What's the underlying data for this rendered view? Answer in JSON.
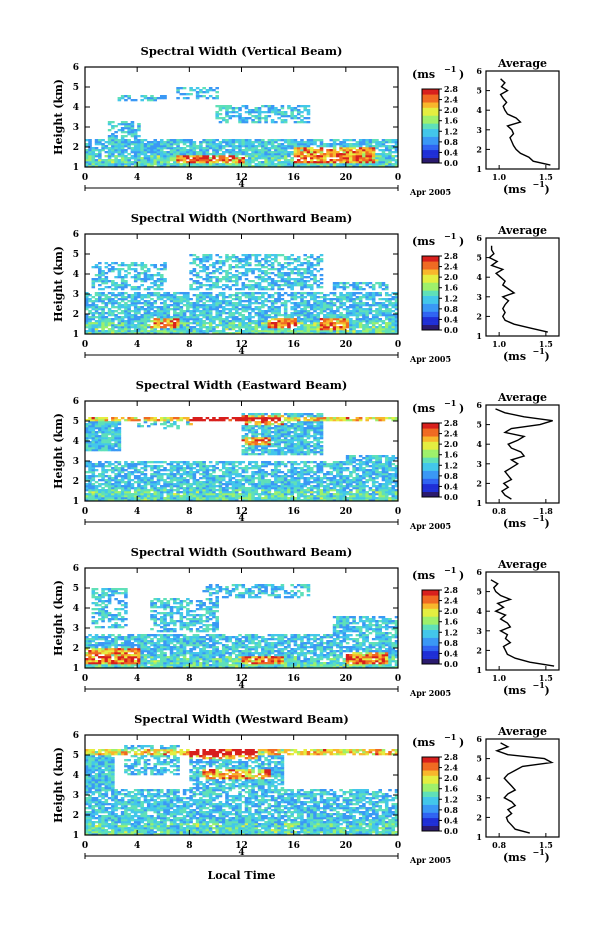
{
  "figure": {
    "x_label": "Local Time",
    "date_label": "Apr 2005",
    "date_tick": "4",
    "height_label": "Height (km)",
    "unit_label": "(ms",
    "unit_exp": "−1",
    "average_title": "Average",
    "colorscale": [
      "#2b1a6e",
      "#1f2fd6",
      "#2f63f2",
      "#3a98f5",
      "#43c7ea",
      "#5fe0b8",
      "#9ef06b",
      "#e4ee40",
      "#f8b72c",
      "#f06a22",
      "#d81f1c"
    ]
  },
  "chart_data": [
    {
      "type": "heatmap",
      "title": "Spectral Width (Vertical Beam)",
      "x_ticks": [
        "0",
        "4",
        "8",
        "12",
        "16",
        "20",
        "0"
      ],
      "y_ticks": [
        "1",
        "2",
        "3",
        "4",
        "5",
        "6"
      ],
      "xlim": [
        0,
        24
      ],
      "ylim": [
        1,
        6
      ],
      "colorbar": {
        "ticks": [
          "0.0",
          "0.4",
          "0.8",
          "1.2",
          "1.6",
          "2.0",
          "2.4",
          "2.8"
        ],
        "range": [
          0,
          2.8
        ]
      },
      "profile": {
        "title": "Average",
        "x_ticks": [
          "1.0",
          "1.5"
        ],
        "xlim": [
          0.8,
          1.65
        ],
        "ylim": [
          1,
          6
        ],
        "y_ticks": [
          "1",
          "2",
          "3",
          "4",
          "5",
          "6"
        ],
        "heights": [
          1.2,
          1.4,
          1.6,
          1.8,
          2.0,
          2.2,
          2.4,
          2.6,
          2.8,
          3.0,
          3.2,
          3.4,
          3.6,
          3.8,
          4.0,
          4.2,
          4.4,
          4.6,
          4.8,
          5.0,
          5.2,
          5.4,
          5.6
        ],
        "values": [
          1.55,
          1.35,
          1.3,
          1.2,
          1.15,
          1.12,
          1.1,
          1.08,
          1.12,
          1.1,
          1.05,
          1.2,
          1.15,
          1.05,
          1.02,
          1.0,
          1.04,
          1.0,
          0.97,
          1.05,
          0.98,
          1.02,
          0.97
        ]
      }
    },
    {
      "type": "heatmap",
      "title": "Spectral Width (Northward Beam)",
      "x_ticks": [
        "0",
        "4",
        "8",
        "12",
        "16",
        "20",
        "0"
      ],
      "y_ticks": [
        "1",
        "2",
        "3",
        "4",
        "5",
        "6"
      ],
      "xlim": [
        0,
        24
      ],
      "ylim": [
        1,
        6
      ],
      "colorbar": {
        "ticks": [
          "0.0",
          "0.4",
          "0.8",
          "1.2",
          "1.6",
          "2.0",
          "2.4",
          "2.8"
        ],
        "range": [
          0,
          2.8
        ]
      },
      "profile": {
        "title": "Average",
        "x_ticks": [
          "1.0",
          "1.5"
        ],
        "xlim": [
          0.95,
          1.6
        ],
        "ylim": [
          1,
          6
        ],
        "y_ticks": [
          "1",
          "2",
          "3",
          "4",
          "5",
          "6"
        ],
        "heights": [
          1.2,
          1.4,
          1.6,
          1.8,
          2.0,
          2.2,
          2.4,
          2.6,
          2.8,
          3.0,
          3.2,
          3.4,
          3.6,
          3.8,
          4.0,
          4.2,
          4.4,
          4.6,
          4.8,
          5.0,
          5.2,
          5.4,
          5.6
        ],
        "values": [
          1.5,
          1.35,
          1.2,
          1.12,
          1.1,
          1.12,
          1.1,
          1.12,
          1.15,
          1.1,
          1.2,
          1.15,
          1.1,
          1.12,
          1.08,
          1.04,
          1.1,
          1.0,
          1.05,
          0.98,
          1.02,
          1.0,
          1.0
        ]
      }
    },
    {
      "type": "heatmap",
      "title": "Spectral Width (Eastward Beam)",
      "x_ticks": [
        "0",
        "4",
        "8",
        "12",
        "16",
        "20",
        "0"
      ],
      "y_ticks": [
        "1",
        "2",
        "3",
        "4",
        "5",
        "6"
      ],
      "xlim": [
        0,
        24
      ],
      "ylim": [
        1,
        6
      ],
      "colorbar": {
        "ticks": [
          "0.0",
          "0.4",
          "0.8",
          "1.2",
          "1.6",
          "2.0",
          "2.4",
          "2.8"
        ],
        "range": [
          0,
          2.8
        ]
      },
      "profile": {
        "title": "Average",
        "x_ticks": [
          "0.8",
          "1.8"
        ],
        "xlim": [
          0.7,
          1.85
        ],
        "ylim": [
          1,
          6
        ],
        "y_ticks": [
          "1",
          "2",
          "3",
          "4",
          "5",
          "6"
        ],
        "heights": [
          1.2,
          1.4,
          1.6,
          1.8,
          2.0,
          2.2,
          2.4,
          2.6,
          2.8,
          3.0,
          3.2,
          3.4,
          3.6,
          3.8,
          4.0,
          4.2,
          4.4,
          4.6,
          4.8,
          5.0,
          5.2,
          5.4,
          5.6,
          5.8
        ],
        "values": [
          1.1,
          1.0,
          0.95,
          1.05,
          0.98,
          1.1,
          1.05,
          1.0,
          1.1,
          1.2,
          1.1,
          1.3,
          1.25,
          1.1,
          1.05,
          1.2,
          1.3,
          1.0,
          1.1,
          1.55,
          1.75,
          1.3,
          1.0,
          0.85
        ]
      }
    },
    {
      "type": "heatmap",
      "title": "Spectral Width (Southward Beam)",
      "x_ticks": [
        "0",
        "4",
        "8",
        "12",
        "16",
        "20",
        "0"
      ],
      "y_ticks": [
        "1",
        "2",
        "3",
        "4",
        "5",
        "6"
      ],
      "xlim": [
        0,
        24
      ],
      "ylim": [
        1,
        6
      ],
      "colorbar": {
        "ticks": [
          "0.0",
          "0.4",
          "0.8",
          "1.2",
          "1.6",
          "2.0",
          "2.4",
          "2.8"
        ],
        "range": [
          0,
          2.8
        ]
      },
      "profile": {
        "title": "Average",
        "x_ticks": [
          "1.0",
          "1.5"
        ],
        "xlim": [
          0.9,
          1.65
        ],
        "ylim": [
          1,
          6
        ],
        "y_ticks": [
          "1",
          "2",
          "3",
          "4",
          "5",
          "6"
        ],
        "heights": [
          1.2,
          1.4,
          1.6,
          1.8,
          2.0,
          2.2,
          2.4,
          2.6,
          2.8,
          3.0,
          3.2,
          3.4,
          3.6,
          3.8,
          4.0,
          4.2,
          4.4,
          4.6,
          4.8,
          5.0,
          5.2,
          5.4,
          5.6
        ],
        "values": [
          1.6,
          1.35,
          1.2,
          1.12,
          1.1,
          1.08,
          1.15,
          1.1,
          1.12,
          1.05,
          1.15,
          1.12,
          1.05,
          1.1,
          1.0,
          1.08,
          1.02,
          1.15,
          1.05,
          1.0,
          0.98,
          1.02,
          0.95
        ]
      }
    },
    {
      "type": "heatmap",
      "title": "Spectral Width (Westward Beam)",
      "x_ticks": [
        "0",
        "4",
        "8",
        "12",
        "16",
        "20",
        "0"
      ],
      "y_ticks": [
        "1",
        "2",
        "3",
        "4",
        "5",
        "6"
      ],
      "xlim": [
        0,
        24
      ],
      "ylim": [
        1,
        6
      ],
      "colorbar": {
        "ticks": [
          "0.0",
          "0.4",
          "0.8",
          "1.2",
          "1.6",
          "2.0",
          "2.4",
          "2.8"
        ],
        "range": [
          0,
          2.8
        ]
      },
      "profile": {
        "title": "Average",
        "x_ticks": [
          "0.8",
          "1.5"
        ],
        "xlim": [
          0.7,
          1.7
        ],
        "ylim": [
          1,
          6
        ],
        "y_ticks": [
          "1",
          "2",
          "3",
          "4",
          "5",
          "6"
        ],
        "heights": [
          1.2,
          1.4,
          1.6,
          1.8,
          2.0,
          2.2,
          2.4,
          2.6,
          2.8,
          3.0,
          3.2,
          3.4,
          3.6,
          3.8,
          4.0,
          4.2,
          4.4,
          4.6,
          4.8,
          5.0,
          5.2,
          5.4,
          5.6,
          5.8
        ],
        "values": [
          1.3,
          1.1,
          1.05,
          1.0,
          0.98,
          1.05,
          1.0,
          1.1,
          1.05,
          0.95,
          1.0,
          1.1,
          1.05,
          1.0,
          0.95,
          1.0,
          1.1,
          1.2,
          1.6,
          1.5,
          1.0,
          0.85,
          1.0,
          0.9
        ]
      }
    }
  ]
}
